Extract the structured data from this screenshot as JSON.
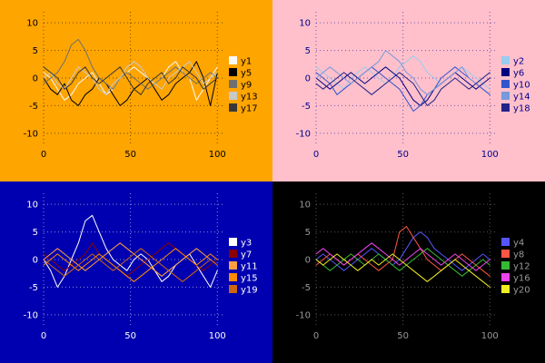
{
  "page": {
    "layout": "2x2-multiplot"
  },
  "chart_data": [
    {
      "type": "line",
      "position": "top-left",
      "background": "#ffa500",
      "axis_color": "#000000",
      "xlim": [
        0,
        103
      ],
      "ylim": [
        -12,
        12
      ],
      "xticks": [
        0,
        50,
        100
      ],
      "yticks": [
        -10,
        -5,
        0,
        5,
        10
      ],
      "grid": true,
      "legend_position": "center-right",
      "x": [
        0,
        4,
        8,
        12,
        16,
        20,
        24,
        28,
        32,
        36,
        40,
        44,
        48,
        52,
        56,
        60,
        64,
        68,
        72,
        76,
        80,
        84,
        88,
        92,
        96,
        100
      ],
      "series": [
        {
          "name": "y1",
          "color": "#f8f8f8",
          "values": [
            1,
            0,
            -2,
            -4,
            -3,
            -1,
            0,
            1,
            -1,
            -3,
            -2,
            0,
            1,
            2,
            1,
            0,
            -1,
            0,
            2,
            3,
            1,
            0,
            -4,
            -2,
            0,
            2
          ]
        },
        {
          "name": "y5",
          "color": "#000000",
          "values": [
            0,
            -2,
            -3,
            -1,
            -4,
            -5,
            -3,
            -2,
            0,
            -1,
            -3,
            -5,
            -4,
            -2,
            -1,
            0,
            -2,
            -4,
            -3,
            -1,
            0,
            1,
            3,
            0,
            -5,
            1
          ]
        },
        {
          "name": "y9",
          "color": "#707070",
          "values": [
            -1,
            0,
            1,
            3,
            6,
            7,
            5,
            2,
            0,
            -1,
            -2,
            0,
            1,
            0,
            -1,
            -2,
            -1,
            0,
            1,
            2,
            1,
            0,
            -1,
            0,
            1,
            0
          ]
        },
        {
          "name": "y13",
          "color": "#c8c8c8",
          "values": [
            0,
            1,
            -1,
            -2,
            0,
            2,
            1,
            0,
            -2,
            -3,
            -1,
            0,
            2,
            3,
            2,
            0,
            -1,
            -2,
            0,
            1,
            2,
            3,
            1,
            -1,
            0,
            1
          ]
        },
        {
          "name": "y17",
          "color": "#383838",
          "values": [
            2,
            1,
            0,
            -2,
            -1,
            1,
            2,
            0,
            -1,
            0,
            1,
            2,
            0,
            -2,
            -3,
            -1,
            0,
            1,
            -1,
            0,
            2,
            1,
            0,
            -2,
            -1,
            0
          ]
        }
      ]
    },
    {
      "type": "line",
      "position": "top-right",
      "background": "#ffc0cb",
      "axis_color": "#00008b",
      "xlim": [
        0,
        103
      ],
      "ylim": [
        -12,
        12
      ],
      "xticks": [
        0,
        50,
        100
      ],
      "yticks": [
        -10,
        -5,
        0,
        5,
        10
      ],
      "grid": true,
      "legend_position": "center-right",
      "x": [
        0,
        4,
        8,
        12,
        16,
        20,
        24,
        28,
        32,
        36,
        40,
        44,
        48,
        52,
        56,
        60,
        64,
        68,
        72,
        76,
        80,
        84,
        88,
        92,
        96,
        100
      ],
      "series": [
        {
          "name": "y2",
          "color": "#99ccee",
          "values": [
            2,
            1,
            0,
            -1,
            -2,
            0,
            1,
            2,
            1,
            0,
            -1,
            0,
            2,
            3,
            4,
            3,
            1,
            0,
            -1,
            0,
            1,
            2,
            1,
            0,
            -1,
            -2
          ]
        },
        {
          "name": "y6",
          "color": "#000080",
          "values": [
            0,
            -1,
            -2,
            -1,
            0,
            1,
            0,
            -1,
            0,
            1,
            2,
            1,
            0,
            -2,
            -4,
            -5,
            -4,
            -2,
            -1,
            0,
            1,
            0,
            -1,
            -2,
            -1,
            0
          ]
        },
        {
          "name": "y10",
          "color": "#3355cc",
          "values": [
            1,
            0,
            -1,
            -3,
            -2,
            -1,
            0,
            1,
            2,
            1,
            0,
            -1,
            -2,
            -4,
            -6,
            -5,
            -3,
            -2,
            0,
            1,
            2,
            1,
            0,
            -1,
            -2,
            -3
          ]
        },
        {
          "name": "y14",
          "color": "#7799dd",
          "values": [
            0,
            1,
            2,
            1,
            0,
            -1,
            0,
            1,
            2,
            3,
            5,
            4,
            3,
            1,
            0,
            -2,
            -3,
            -2,
            -1,
            0,
            1,
            2,
            0,
            -1,
            0,
            1
          ]
        },
        {
          "name": "y18",
          "color": "#222288",
          "values": [
            -1,
            -2,
            -1,
            0,
            1,
            0,
            -1,
            -2,
            -3,
            -2,
            -1,
            0,
            1,
            0,
            -1,
            -3,
            -5,
            -4,
            -2,
            -1,
            0,
            -1,
            -2,
            -1,
            0,
            1
          ]
        }
      ]
    },
    {
      "type": "line",
      "position": "bottom-left",
      "background": "#0000b0",
      "axis_color": "#ffffff",
      "xlim": [
        0,
        103
      ],
      "ylim": [
        -12,
        12
      ],
      "xticks": [
        0,
        50,
        100
      ],
      "yticks": [
        -10,
        -5,
        0,
        5,
        10
      ],
      "grid": true,
      "legend_position": "center-right",
      "x": [
        0,
        4,
        8,
        12,
        16,
        20,
        24,
        28,
        32,
        36,
        40,
        44,
        48,
        52,
        56,
        60,
        64,
        68,
        72,
        76,
        80,
        84,
        88,
        92,
        96,
        100
      ],
      "series": [
        {
          "name": "y3",
          "color": "#ffffff",
          "values": [
            0,
            -2,
            -5,
            -3,
            0,
            3,
            7,
            8,
            5,
            2,
            0,
            -1,
            -2,
            0,
            1,
            0,
            -2,
            -4,
            -3,
            -1,
            0,
            1,
            -1,
            -3,
            -5,
            -2
          ]
        },
        {
          "name": "y7",
          "color": "#8b0000",
          "values": [
            1,
            0,
            -1,
            -2,
            -1,
            0,
            1,
            3,
            1,
            0,
            -1,
            -2,
            -3,
            -2,
            -1,
            0,
            1,
            2,
            3,
            2,
            1,
            0,
            -1,
            -2,
            -1,
            0
          ]
        },
        {
          "name": "y11",
          "color": "#ffa040",
          "values": [
            0,
            1,
            2,
            1,
            0,
            -1,
            -2,
            -1,
            0,
            1,
            2,
            3,
            2,
            1,
            0,
            -1,
            -2,
            -3,
            -2,
            -1,
            0,
            1,
            2,
            1,
            0,
            -1
          ]
        },
        {
          "name": "y15",
          "color": "#ff8c00",
          "values": [
            -1,
            0,
            1,
            0,
            -1,
            -2,
            -1,
            0,
            1,
            0,
            -1,
            -2,
            -3,
            -4,
            -3,
            -2,
            -1,
            0,
            1,
            2,
            1,
            0,
            -1,
            0,
            1,
            0
          ]
        },
        {
          "name": "y19",
          "color": "#cc6611",
          "values": [
            0,
            -1,
            -2,
            -3,
            -2,
            -1,
            0,
            1,
            0,
            -1,
            -2,
            -1,
            0,
            1,
            2,
            1,
            0,
            -1,
            -2,
            -3,
            -4,
            -3,
            -2,
            -1,
            0,
            -1
          ]
        }
      ]
    },
    {
      "type": "line",
      "position": "bottom-right",
      "background": "#000000",
      "axis_color": "#999999",
      "xlim": [
        0,
        103
      ],
      "ylim": [
        -12,
        12
      ],
      "xticks": [
        0,
        50,
        100
      ],
      "yticks": [
        -10,
        -5,
        0,
        5,
        10
      ],
      "grid": true,
      "legend_position": "center-right",
      "x": [
        0,
        4,
        8,
        12,
        16,
        20,
        24,
        28,
        32,
        36,
        40,
        44,
        48,
        52,
        56,
        60,
        64,
        68,
        72,
        76,
        80,
        84,
        88,
        92,
        96,
        100
      ],
      "series": [
        {
          "name": "y4",
          "color": "#5555ff",
          "values": [
            0,
            1,
            0,
            -1,
            -2,
            -1,
            0,
            1,
            2,
            1,
            0,
            -1,
            0,
            2,
            4,
            5,
            4,
            2,
            1,
            0,
            -1,
            -2,
            -1,
            0,
            1,
            0
          ]
        },
        {
          "name": "y8",
          "color": "#ff5544",
          "values": [
            -1,
            0,
            1,
            0,
            -1,
            0,
            1,
            0,
            -1,
            -2,
            -1,
            0,
            5,
            6,
            4,
            2,
            0,
            -1,
            -2,
            -1,
            0,
            1,
            0,
            -1,
            -2,
            -3
          ]
        },
        {
          "name": "y12",
          "color": "#33bb33",
          "values": [
            0,
            -1,
            -2,
            -1,
            0,
            1,
            0,
            -1,
            0,
            1,
            0,
            -1,
            -2,
            -1,
            0,
            1,
            2,
            1,
            0,
            -1,
            -2,
            -3,
            -2,
            -1,
            0,
            -1
          ]
        },
        {
          "name": "y16",
          "color": "#ee44ee",
          "values": [
            1,
            2,
            1,
            0,
            -1,
            0,
            1,
            2,
            3,
            2,
            1,
            0,
            -1,
            0,
            1,
            2,
            1,
            0,
            -1,
            0,
            1,
            0,
            -1,
            -2,
            -1,
            0
          ]
        },
        {
          "name": "y20",
          "color": "#eeee22",
          "values": [
            0,
            -1,
            0,
            1,
            0,
            -1,
            -2,
            -1,
            0,
            -1,
            0,
            1,
            0,
            -1,
            -2,
            -3,
            -4,
            -3,
            -2,
            -1,
            0,
            -1,
            -2,
            -3,
            -4,
            -5
          ]
        }
      ]
    }
  ]
}
